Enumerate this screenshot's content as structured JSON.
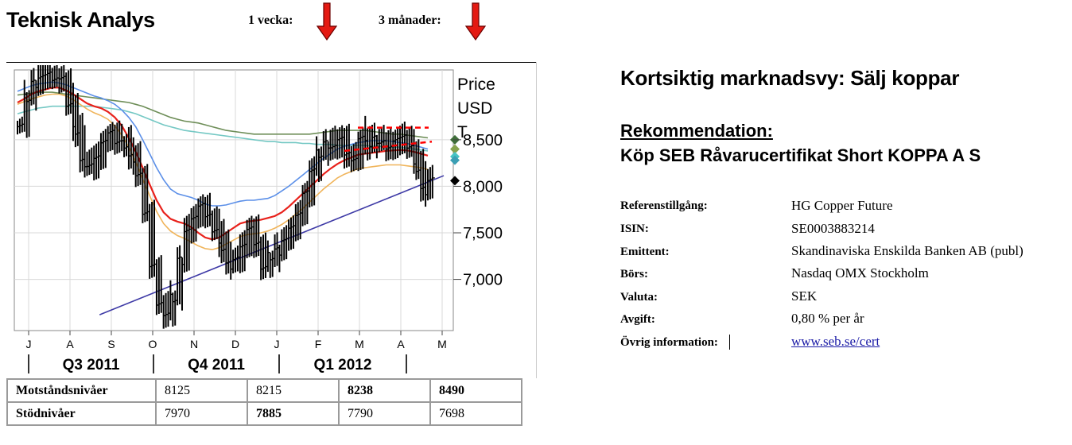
{
  "header": {
    "title": "Teknisk Analys",
    "horizon_1": "1 vecka:",
    "horizon_2": "3 månader:",
    "arrow_1": "down-arrow",
    "arrow_2": "down-arrow",
    "arrow_color": "#e41a13"
  },
  "chart_data": {
    "type": "line",
    "series_kind": "ohlc-bars",
    "price_label": [
      "Price",
      "USD",
      "T"
    ],
    "y_ticks": [
      "8,500",
      "8,000",
      "7,500",
      "7,000"
    ],
    "y_tick_values": [
      8500,
      8000,
      7500,
      7000
    ],
    "ylim": [
      6450,
      9250
    ],
    "x_ticks": [
      "J",
      "A",
      "S",
      "O",
      "N",
      "D",
      "J",
      "F",
      "M",
      "A",
      "M"
    ],
    "quarters": [
      "Q3 2011",
      "Q4 2011",
      "Q1 2012"
    ],
    "grid": true,
    "colors": {
      "price": "#000000",
      "ma_red": "#e8211b",
      "ma_blue": "#5b8fe8",
      "ma_orange": "#f0b45a",
      "ma_darkgreen": "#6e8e58",
      "ma_teal": "#74c8c4",
      "trendline": "#3e3aa6",
      "channel": "#ff0000"
    },
    "price_close": [
      8680,
      8950,
      9100,
      9150,
      9200,
      9150,
      9180,
      8900,
      8600,
      8250,
      8200,
      8300,
      8480,
      8600,
      8500,
      8450,
      8300,
      8100,
      7700,
      7150,
      6750,
      6650,
      6800,
      7200,
      7500,
      7650,
      7800,
      7700,
      7550,
      7350,
      7150,
      7200,
      7350,
      7550,
      7400,
      7150,
      7250,
      7300,
      7400,
      7550,
      7700,
      7950,
      8200,
      8350,
      8450,
      8400,
      8500,
      8350,
      8300,
      8550,
      8450,
      8500,
      8450,
      8400,
      8500,
      8550,
      8450,
      8200,
      7950,
      8050
    ],
    "ma_red": [
      8900,
      8940,
      8990,
      9020,
      9040,
      9060,
      9060,
      9030,
      8990,
      8940,
      8890,
      8860,
      8840,
      8800,
      8740,
      8650,
      8520,
      8370,
      8200,
      8020,
      7850,
      7720,
      7650,
      7620,
      7600,
      7560,
      7500,
      7450,
      7430,
      7450,
      7500,
      7550,
      7600,
      7620,
      7630,
      7640,
      7660,
      7680,
      7720,
      7780,
      7850,
      7920,
      7990,
      8060,
      8130,
      8190,
      8240,
      8280,
      8310,
      8340,
      8350,
      8360,
      8370,
      8380,
      8385,
      8390,
      8385,
      8370,
      8350,
      8330
    ],
    "ma_blue": [
      9020,
      9050,
      9080,
      9100,
      9110,
      9120,
      9110,
      9090,
      9060,
      9030,
      9000,
      8970,
      8950,
      8920,
      8880,
      8820,
      8740,
      8640,
      8500,
      8350,
      8200,
      8070,
      7970,
      7920,
      7900,
      7880,
      7850,
      7810,
      7790,
      7790,
      7800,
      7820,
      7840,
      7850,
      7850,
      7860,
      7870,
      7900,
      7950,
      8000,
      8060,
      8120,
      8180,
      8240,
      8300,
      8350,
      8400,
      8430,
      8450,
      8470,
      8480,
      8490,
      8490,
      8490,
      8480,
      8470,
      8460,
      8440,
      8420,
      8400
    ],
    "ma_orange": [
      8880,
      8910,
      8940,
      8960,
      8980,
      8990,
      8990,
      8970,
      8930,
      8880,
      8830,
      8790,
      8760,
      8720,
      8650,
      8550,
      8420,
      8260,
      8080,
      7900,
      7730,
      7600,
      7520,
      7470,
      7440,
      7400,
      7360,
      7330,
      7320,
      7340,
      7380,
      7420,
      7460,
      7480,
      7490,
      7500,
      7520,
      7550,
      7590,
      7640,
      7700,
      7760,
      7830,
      7900,
      7970,
      8030,
      8090,
      8130,
      8160,
      8190,
      8200,
      8210,
      8220,
      8230,
      8230,
      8230,
      8220,
      8210,
      8200,
      8180
    ],
    "ma_darkgreen": [
      8980,
      8990,
      9000,
      9010,
      9010,
      9010,
      9000,
      8990,
      8980,
      8970,
      8960,
      8950,
      8940,
      8930,
      8920,
      8910,
      8900,
      8880,
      8860,
      8830,
      8800,
      8770,
      8740,
      8720,
      8700,
      8690,
      8680,
      8660,
      8640,
      8620,
      8600,
      8590,
      8580,
      8570,
      8560,
      8560,
      8560,
      8560,
      8560,
      8560,
      8560,
      8560,
      8560,
      8570,
      8580,
      8590,
      8600,
      8600,
      8600,
      8600,
      8600,
      8590,
      8580,
      8570,
      8560,
      8560,
      8550,
      8540,
      8530,
      8520
    ],
    "ma_teal": [
      8780,
      8800,
      8820,
      8840,
      8850,
      8860,
      8860,
      8860,
      8860,
      8860,
      8860,
      8860,
      8850,
      8840,
      8830,
      8820,
      8800,
      8780,
      8750,
      8720,
      8690,
      8660,
      8640,
      8620,
      8600,
      8590,
      8580,
      8570,
      8560,
      8550,
      8540,
      8530,
      8520,
      8510,
      8500,
      8490,
      8480,
      8480,
      8470,
      8470,
      8470,
      8460,
      8460,
      8450,
      8450,
      8450,
      8440,
      8440,
      8440,
      8440,
      8440,
      8430,
      8430,
      8420,
      8420,
      8420,
      8410,
      8400,
      8390,
      8380
    ],
    "trendline": [
      [
        0.2,
        6620
      ],
      [
        1.0,
        8080
      ]
    ],
    "resistance_channel": {
      "top": 8630,
      "bottom": 8380,
      "slope_bottom_end": 8480
    },
    "markers": [
      {
        "value": 8500,
        "color": "#3f6e3a"
      },
      {
        "value": 8400,
        "color": "#86a34e"
      },
      {
        "value": 8320,
        "color": "#47c4c4"
      },
      {
        "value": 8280,
        "color": "#3b9fb4"
      },
      {
        "value": 8060,
        "color": "#000000"
      }
    ]
  },
  "levels_table": {
    "rows": [
      {
        "label": "Motståndsnivåer",
        "values": [
          "8125",
          "8215",
          "8238",
          "8490"
        ],
        "bold": [
          false,
          false,
          true,
          true
        ]
      },
      {
        "label": "Stödnivåer",
        "values": [
          "7970",
          "7885",
          "7790",
          "7698"
        ],
        "bold": [
          false,
          true,
          false,
          false
        ]
      }
    ]
  },
  "right_panel": {
    "market_view": "Kortsiktig marknadsvy: Sälj koppar",
    "recommendation_label": "Rekommendation:",
    "recommendation": "Köp SEB Råvarucertifikat Short KOPPA A S",
    "info": [
      {
        "key": "Referenstillgång:",
        "value": "HG Copper Future"
      },
      {
        "key": "ISIN:",
        "value": "SE0003883214"
      },
      {
        "key": "Emittent:",
        "value": "Skandinaviska Enskilda Banken AB (publ)"
      },
      {
        "key": "Börs:",
        "value": "Nasdaq OMX Stockholm"
      },
      {
        "key": "Valuta:",
        "value": "SEK"
      },
      {
        "key": "Avgift:",
        "value": "0,80 % per år"
      },
      {
        "key": "Övrig information:",
        "value": "www.seb.se/cert"
      }
    ]
  }
}
